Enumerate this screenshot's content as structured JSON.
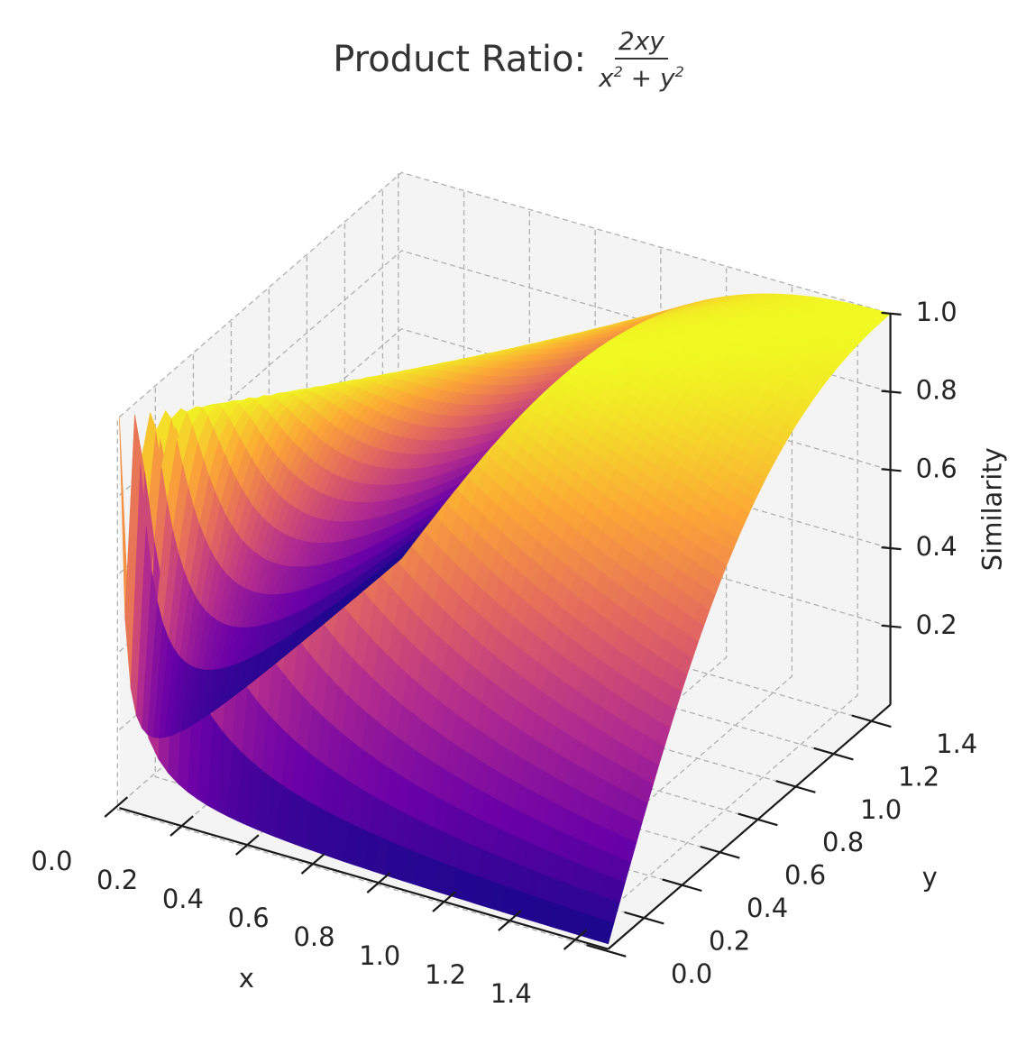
{
  "title": {
    "prefix": "Product Ratio:",
    "numerator": "2xy",
    "den_x": "x",
    "den_y": "y",
    "den_plus": " + ",
    "den_exp": "2"
  },
  "colors": {
    "cmap": [
      "#0d0887",
      "#6a00a8",
      "#b12a90",
      "#e16462",
      "#fca636",
      "#f0f921"
    ],
    "pane": "#f4f4f4",
    "grid": "#b0b0b0",
    "axis": "#1a1a1a"
  },
  "chart_data": {
    "type": "surface",
    "function": "2xy/(x^2+y^2)",
    "colormap": "plasma",
    "x": {
      "label": "x",
      "range": [
        0.01,
        1.5
      ],
      "ticks": [
        0.0,
        0.2,
        0.4,
        0.6,
        0.8,
        1.0,
        1.2,
        1.4
      ],
      "tick_labels": [
        "0.0",
        "0.2",
        "0.4",
        "0.6",
        "0.8",
        "1.0",
        "1.2",
        "1.4"
      ]
    },
    "y": {
      "label": "y",
      "range": [
        0.01,
        1.5
      ],
      "ticks": [
        0.0,
        0.2,
        0.4,
        0.6,
        0.8,
        1.0,
        1.2,
        1.4
      ],
      "tick_labels": [
        "0.0",
        "0.2",
        "0.4",
        "0.6",
        "0.8",
        "1.0",
        "1.2",
        "1.4"
      ]
    },
    "z": {
      "label": "Similarity",
      "range": [
        0.0,
        1.0
      ],
      "ticks": [
        0.2,
        0.4,
        0.6,
        0.8,
        1.0
      ],
      "tick_labels": [
        "0.2",
        "0.4",
        "0.6",
        "0.8",
        "1.0"
      ]
    },
    "grid": true,
    "grid_resolution": 50
  }
}
